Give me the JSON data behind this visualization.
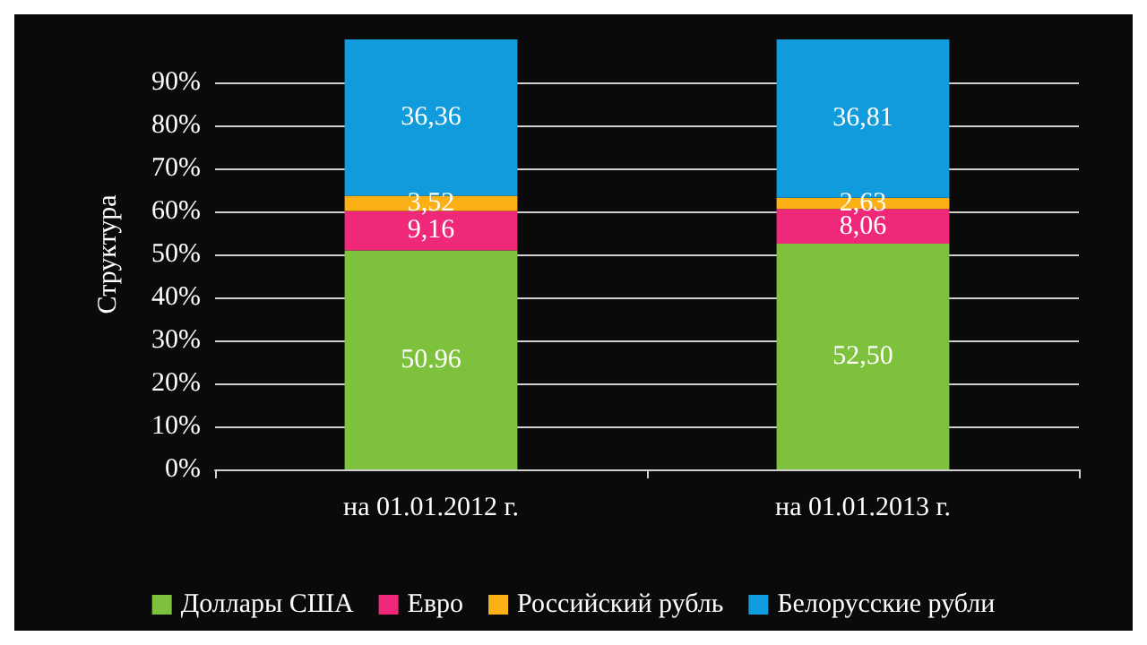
{
  "chart_data": {
    "type": "bar",
    "stacked": true,
    "ylabel": "Структура",
    "categories": [
      "на 01.01.2012 г.",
      "на 01.01.2013 г."
    ],
    "series": [
      {
        "name": "Доллары США",
        "color": "#7dc13c",
        "values": [
          50.96,
          52.5
        ],
        "value_labels": [
          "50.96",
          "52,50"
        ]
      },
      {
        "name": "Евро",
        "color": "#f0287a",
        "values": [
          9.16,
          8.06
        ],
        "value_labels": [
          "9,16",
          "8,06"
        ]
      },
      {
        "name": "Российский рубль",
        "color": "#fbb116",
        "values": [
          3.52,
          2.63
        ],
        "value_labels": [
          "3,52",
          "2,63"
        ]
      },
      {
        "name": "Белорусские рубли",
        "color": "#0f9bdc",
        "values": [
          36.36,
          36.81
        ],
        "value_labels": [
          "36,36",
          "36,81"
        ]
      }
    ],
    "ylim": [
      0,
      100
    ],
    "yticks": [
      {
        "value": 0,
        "label": "0%"
      },
      {
        "value": 10,
        "label": "10%"
      },
      {
        "value": 20,
        "label": "20%"
      },
      {
        "value": 30,
        "label": "30%"
      },
      {
        "value": 40,
        "label": "40%"
      },
      {
        "value": 50,
        "label": "50%"
      },
      {
        "value": 60,
        "label": "60%"
      },
      {
        "value": 70,
        "label": "70%"
      },
      {
        "value": 80,
        "label": "80%"
      },
      {
        "value": 90,
        "label": "90%"
      }
    ],
    "grid": "y",
    "legend": "bottom"
  }
}
